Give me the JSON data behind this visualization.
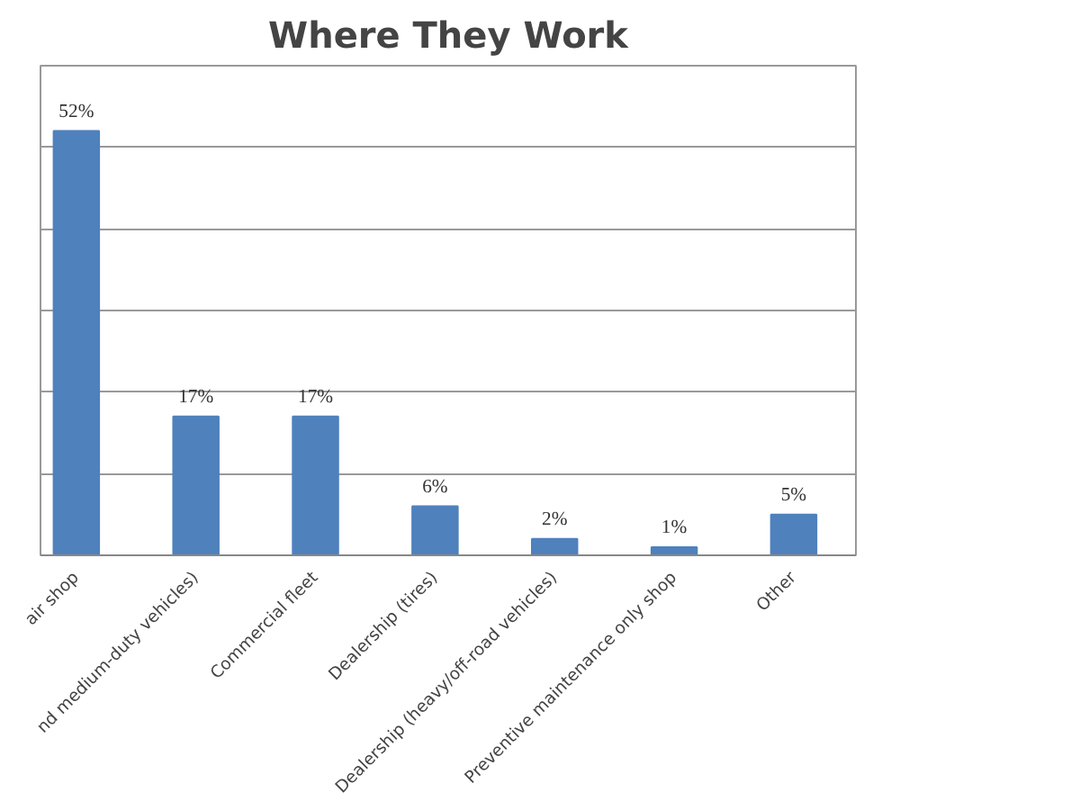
{
  "chart_data": {
    "type": "bar",
    "title": "Where They Work",
    "categories": [
      "air shop",
      "nd medium-duty vehicles)",
      "Commercial fleet",
      "Dealership (tires)",
      "Dealership (heavy/off-road vehicles)",
      "Preventive maintenance only shop",
      "Other"
    ],
    "values": [
      52,
      17,
      17,
      6,
      2,
      1,
      5
    ],
    "value_labels": [
      "52%",
      "17%",
      "17%",
      "6%",
      "2%",
      "1%",
      "5%"
    ],
    "color": "#4f81bd",
    "ylim": [
      0,
      60
    ],
    "grid": "y",
    "tick_labels": "x"
  }
}
